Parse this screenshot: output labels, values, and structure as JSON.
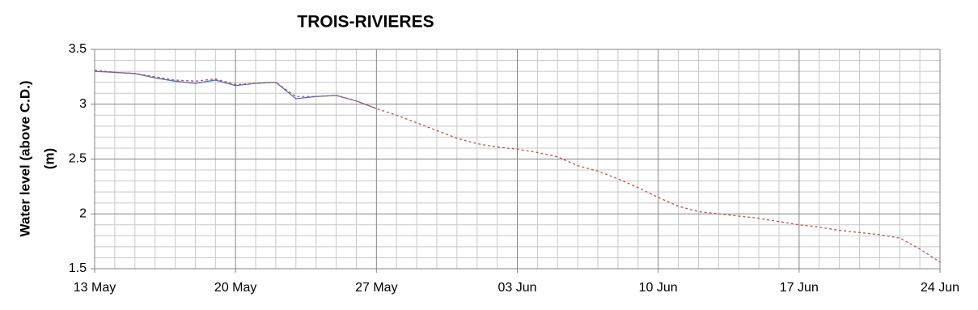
{
  "chart_data": {
    "type": "line",
    "title": "TROIS-RIVIERES",
    "ylabel": [
      "Water level (above C.D.)",
      "(m)"
    ],
    "xlim": [
      0,
      42
    ],
    "xticks": [
      {
        "value": 0,
        "label": "13 May"
      },
      {
        "value": 7,
        "label": "20 May"
      },
      {
        "value": 14,
        "label": "27 May"
      },
      {
        "value": 21,
        "label": "03 Jun"
      },
      {
        "value": 28,
        "label": "10 Jun"
      },
      {
        "value": 35,
        "label": "17 Jun"
      },
      {
        "value": 42,
        "label": "24 Jun"
      }
    ],
    "ylim": [
      1.5,
      3.5
    ],
    "yticks": [
      1.5,
      2,
      2.5,
      3,
      3.5
    ],
    "grid": true,
    "minor_divisions": {
      "x": 7,
      "y": 5
    },
    "series": [
      {
        "color": "#4f6fbf",
        "dashed": false,
        "x": [
          0,
          1,
          2,
          3,
          4,
          5,
          6,
          7,
          8,
          9,
          10,
          11,
          12,
          13,
          14
        ],
        "values": [
          3.3,
          3.29,
          3.28,
          3.24,
          3.21,
          3.19,
          3.22,
          3.17,
          3.19,
          3.2,
          3.05,
          3.07,
          3.08,
          3.03,
          2.96
        ]
      },
      {
        "color": "#c0504d",
        "dashed": true,
        "x": [
          0,
          1,
          2,
          3,
          4,
          5,
          6,
          7,
          8,
          9,
          10,
          11,
          12,
          13,
          14,
          15,
          16,
          17,
          18,
          19,
          20,
          21,
          22,
          23,
          24,
          25,
          26,
          27,
          28,
          29,
          30,
          31,
          32,
          33,
          34,
          35,
          36,
          37,
          38,
          39,
          40,
          41,
          42
        ],
        "values": [
          3.31,
          3.29,
          3.28,
          3.25,
          3.22,
          3.21,
          3.23,
          3.18,
          3.19,
          3.2,
          3.07,
          3.07,
          3.08,
          3.03,
          2.96,
          2.9,
          2.83,
          2.76,
          2.69,
          2.64,
          2.61,
          2.59,
          2.56,
          2.52,
          2.44,
          2.39,
          2.32,
          2.24,
          2.15,
          2.07,
          2.02,
          2.0,
          1.98,
          1.96,
          1.93,
          1.9,
          1.88,
          1.85,
          1.83,
          1.81,
          1.78,
          1.68,
          1.56
        ]
      }
    ]
  }
}
